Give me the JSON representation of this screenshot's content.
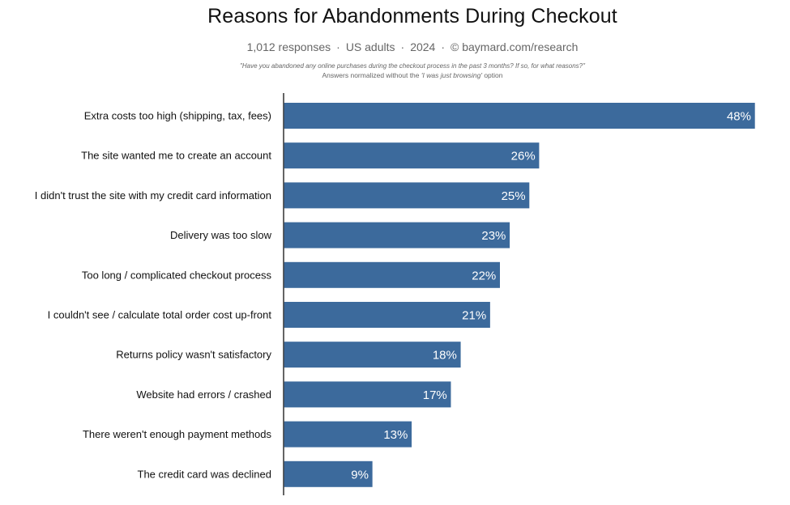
{
  "chart_data": {
    "type": "bar",
    "orientation": "horizontal",
    "title": "Reasons for Abandonments During Checkout",
    "subtitle_parts": [
      "1,012 responses",
      "US adults",
      "2024",
      "© baymard.com/research"
    ],
    "question": "\"Have you abandoned any online purchases during the checkout process in the past 3 months? If so, for what reasons?\"",
    "note_prefix": "Answers normalized without the ",
    "note_emphasis": "'I was just browsing'",
    "note_suffix": " option",
    "categories": [
      "Extra costs too high (shipping, tax, fees)",
      "The site wanted me to create an account",
      "I didn't trust the site with my credit card information",
      "Delivery was too slow",
      "Too long / complicated checkout process",
      "I couldn't see / calculate total order cost up-front",
      "Returns policy wasn't satisfactory",
      "Website had errors / crashed",
      "There weren't enough payment methods",
      "The credit card was declined"
    ],
    "values": [
      48,
      26,
      25,
      23,
      22,
      21,
      18,
      17,
      13,
      9
    ],
    "value_suffix": "%",
    "xlim": [
      0,
      48
    ],
    "grid": false,
    "bar_color": "#3c6a9c",
    "axis_color": "#111111"
  }
}
